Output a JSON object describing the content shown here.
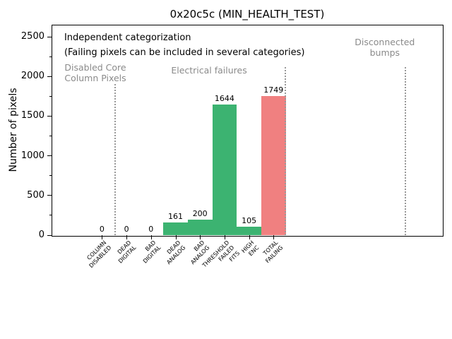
{
  "title": "0x20c5c (MIN_HEALTH_TEST)",
  "colors": {
    "green": "#3cb371",
    "red": "#f08080",
    "annotation_gray": "#8a8a8a",
    "separator_gray": "#999999",
    "axis_black": "#000000"
  },
  "chart_data": {
    "type": "bar",
    "title": "0x20c5c (MIN_HEALTH_TEST)",
    "xlabel": "",
    "ylabel": "Number of pixels",
    "ylim": [
      0,
      2650
    ],
    "yticks": [
      0,
      500,
      1000,
      1500,
      2000,
      2500
    ],
    "yticks_minor": [
      250,
      750,
      1250,
      1750,
      2250
    ],
    "grid": false,
    "legend": null,
    "categories": [
      "COLUMN DISABLED",
      "DEAD DIGITAL",
      "BAD DIGITAL",
      "DEAD ANALOG",
      "BAD ANALOG",
      "THRESHOLD FAILED FITS",
      "HIGH ENC",
      "TOTAL FAILING"
    ],
    "category_tick_lines": [
      [
        "COLUMN",
        "DISABLED"
      ],
      [
        "DEAD",
        "DIGITAL"
      ],
      [
        "BAD",
        "DIGITAL"
      ],
      [
        "DEAD",
        "ANALOG"
      ],
      [
        "BAD",
        "ANALOG"
      ],
      [
        "THRESHOLD",
        "FAILED",
        "FITS"
      ],
      [
        "HIGH",
        "ENC"
      ],
      [
        "TOTAL",
        "FAILING"
      ]
    ],
    "values": [
      0,
      0,
      0,
      161,
      200,
      1644,
      105,
      1749
    ],
    "bar_labels": [
      "0",
      "0",
      "0",
      "161",
      "200",
      "1644",
      "105",
      "1749"
    ],
    "bar_color_names": [
      "green",
      "green",
      "green",
      "green",
      "green",
      "green",
      "green",
      "red"
    ],
    "separators": [
      {
        "x": 0.54,
        "ymax": 1900
      },
      {
        "x": 7.48,
        "ymax": 2120
      },
      {
        "x": 12.38,
        "ymax": 2120
      }
    ],
    "region_labels": [
      {
        "lines": [
          "Disabled Core",
          "Column Pixels"
        ],
        "x": -0.27,
        "y_top": 2180
      },
      {
        "lines": [
          "Electrical failures"
        ],
        "x": 4.37,
        "y_top": 2144
      },
      {
        "lines": [
          "Disconnected",
          "bumps"
        ],
        "x": 11.54,
        "y_top": 2500
      }
    ],
    "notes": [
      {
        "text": "Independent categorization",
        "x": -1.54,
        "y_top": 2553
      },
      {
        "text": "(Failing pixels can be included in several categories)",
        "x": -1.54,
        "y_top": 2366
      }
    ],
    "xlim_categories": [
      -2.06,
      13.88
    ]
  }
}
